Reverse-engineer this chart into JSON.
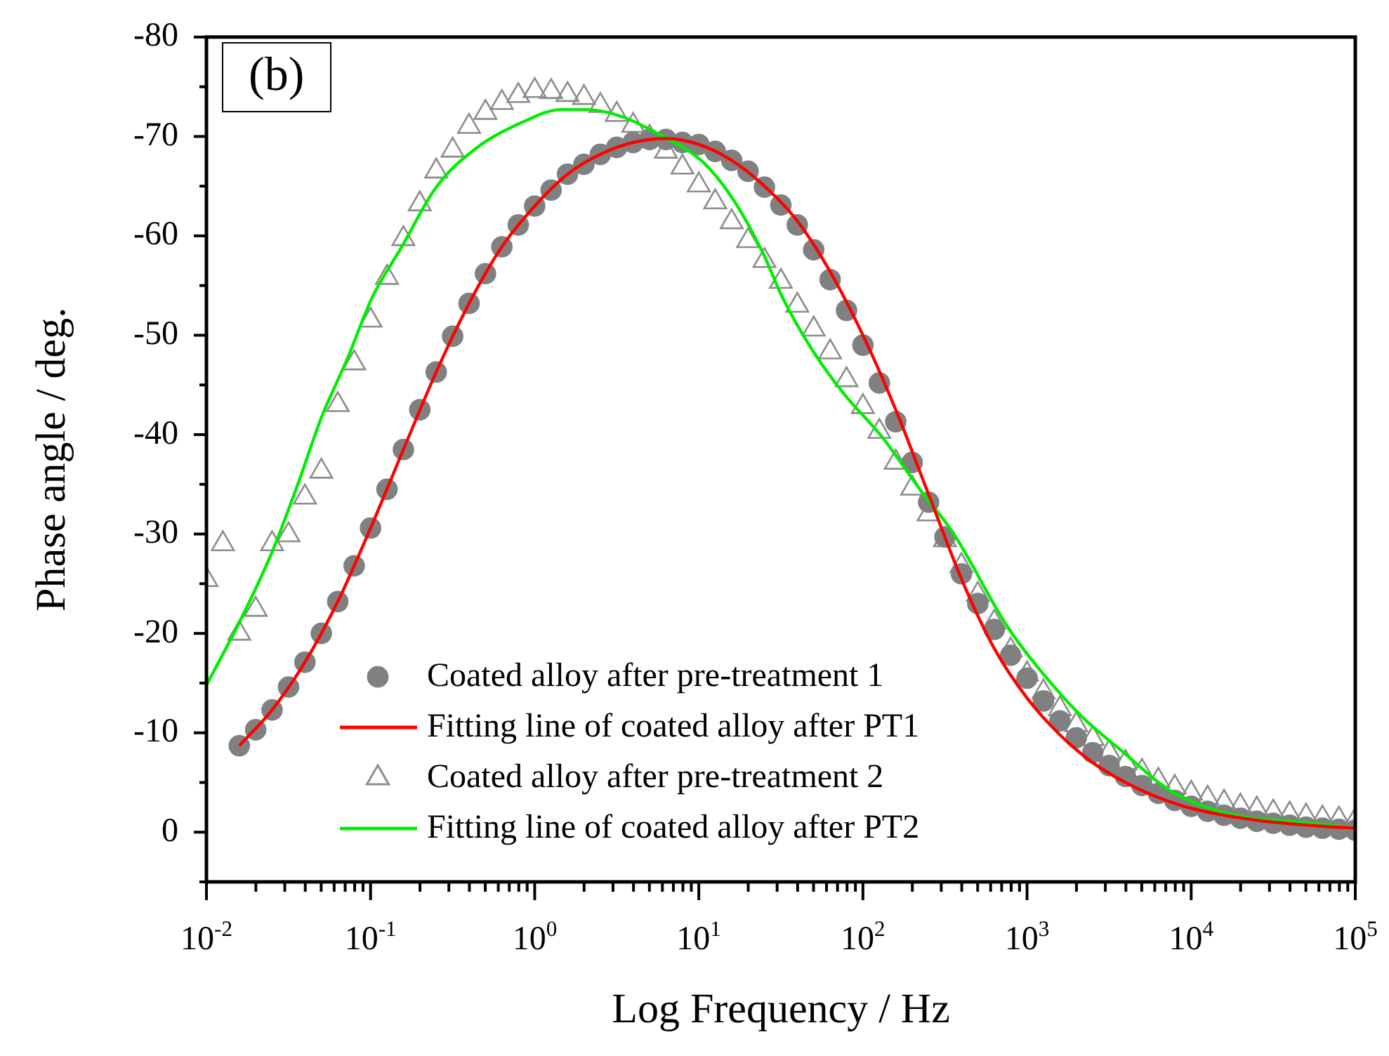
{
  "chart_data": {
    "type": "scatter",
    "xlabel": "Log Frequency / Hz",
    "ylabel": "Phase angle / deg.",
    "log": "x",
    "legend": "bottom left",
    "grid": false,
    "annotations": [
      "(b)"
    ],
    "xlim": [
      0.01,
      100000
    ],
    "ylim": [
      5,
      -80
    ],
    "yticks": [
      -80,
      {
        "value": -75,
        "label": null
      },
      -70,
      {
        "value": -65,
        "label": null
      },
      -60,
      {
        "value": -55,
        "label": null
      },
      -50,
      {
        "value": -45,
        "label": null
      },
      -40,
      {
        "value": -35,
        "label": null
      },
      -30,
      {
        "value": -25,
        "label": null
      },
      -20,
      {
        "value": -15,
        "label": null
      },
      -10,
      {
        "value": -5,
        "label": null
      },
      0,
      {
        "value": 5,
        "label": null
      }
    ],
    "xticks": [
      {
        "value": 0.01,
        "label": "10$^{-2}$"
      },
      {
        "value": 0.02,
        "label": null
      },
      {
        "value": 0.03,
        "label": null
      },
      {
        "value": 0.04,
        "label": null
      },
      {
        "value": 0.05,
        "label": null
      },
      {
        "value": 0.06,
        "label": null
      },
      {
        "value": 0.07,
        "label": null
      },
      {
        "value": 0.08,
        "label": null
      },
      {
        "value": 0.09,
        "label": null
      },
      {
        "value": 0.1,
        "label": "10$^{-1}$"
      },
      {
        "value": 0.2,
        "label": null
      },
      {
        "value": 0.3,
        "label": null
      },
      {
        "value": 0.4,
        "label": null
      },
      {
        "value": 0.5,
        "label": null
      },
      {
        "value": 0.6,
        "label": null
      },
      {
        "value": 0.7,
        "label": null
      },
      {
        "value": 0.8,
        "label": null
      },
      {
        "value": 0.9,
        "label": null
      },
      {
        "value": 1,
        "label": "10$^{0}$"
      },
      {
        "value": 2,
        "label": null
      },
      {
        "value": 3,
        "label": null
      },
      {
        "value": 4,
        "label": null
      },
      {
        "value": 5,
        "label": null
      },
      {
        "value": 6,
        "label": null
      },
      {
        "value": 7,
        "label": null
      },
      {
        "value": 8,
        "label": null
      },
      {
        "value": 9,
        "label": null
      },
      {
        "value": 10,
        "label": "10$^{1}$"
      },
      {
        "value": 20,
        "label": null
      },
      {
        "value": 30,
        "label": null
      },
      {
        "value": 40,
        "label": null
      },
      {
        "value": 50,
        "label": null
      },
      {
        "value": 60,
        "label": null
      },
      {
        "value": 70,
        "label": null
      },
      {
        "value": 80,
        "label": null
      },
      {
        "value": 90,
        "label": null
      },
      {
        "value": 100,
        "label": "10$^{2}$"
      },
      {
        "value": 200,
        "label": null
      },
      {
        "value": 300,
        "label": null
      },
      {
        "value": 400,
        "label": null
      },
      {
        "value": 500,
        "label": null
      },
      {
        "value": 600,
        "label": null
      },
      {
        "value": 700,
        "label": null
      },
      {
        "value": 800,
        "label": null
      },
      {
        "value": 900,
        "label": null
      },
      {
        "value": 1000,
        "label": "10$^{3}$"
      },
      {
        "value": 2000,
        "label": null
      },
      {
        "value": 3000,
        "label": null
      },
      {
        "value": 4000,
        "label": null
      },
      {
        "value": 5000,
        "label": null
      },
      {
        "value": 6000,
        "label": null
      },
      {
        "value": 7000,
        "label": null
      },
      {
        "value": 8000,
        "label": null
      },
      {
        "value": 9000,
        "label": null
      },
      {
        "value": 10000,
        "label": "10$^{4}$"
      },
      {
        "value": 20000,
        "label": null
      },
      {
        "value": 30000,
        "label": null
      },
      {
        "value": 40000,
        "label": null
      },
      {
        "value": 50000,
        "label": null
      },
      {
        "value": 60000,
        "label": null
      },
      {
        "value": 70000,
        "label": null
      },
      {
        "value": 80000,
        "label": null
      },
      {
        "value": 90000,
        "label": null
      },
      {
        "value": 100000,
        "label": "10$^{5}$"
      }
    ],
    "series": [
      {
        "name": "Coated alloy after pre-treatment 1",
        "type": "scatter",
        "marker": "circle",
        "color": "#808080",
        "x": [
          0.01585,
          0.01995,
          0.02512,
          0.03162,
          0.03981,
          0.05012,
          0.0631,
          0.07943,
          0.1,
          0.1259,
          0.1585,
          0.1995,
          0.2512,
          0.3162,
          0.3981,
          0.5012,
          0.631,
          0.7943,
          1,
          1.259,
          1.585,
          1.995,
          2.512,
          3.162,
          3.981,
          5.012,
          6.31,
          7.943,
          10,
          12.59,
          15.85,
          19.95,
          25.12,
          31.62,
          39.81,
          50.12,
          63.1,
          79.43,
          100,
          125.9,
          158.5,
          199.5,
          251.2,
          316.2,
          398.1,
          501.2,
          631,
          794.3,
          1000,
          1259,
          1585,
          1995,
          2512,
          3162,
          3981,
          5012,
          6310,
          7943,
          10000,
          12590,
          15850,
          19950,
          25120,
          31620,
          39810,
          50120,
          63100,
          79430,
          100000
        ],
        "values": [
          -8.7,
          -10.3,
          -12.3,
          -14.6,
          -17.1,
          -20.0,
          -23.2,
          -26.8,
          -30.6,
          -34.5,
          -38.5,
          -42.5,
          -46.3,
          -49.9,
          -53.2,
          -56.2,
          -58.9,
          -61.1,
          -63.0,
          -64.6,
          -66.2,
          -67.2,
          -68.2,
          -68.9,
          -69.4,
          -69.7,
          -69.7,
          -69.4,
          -69.2,
          -68.5,
          -67.6,
          -66.5,
          -64.9,
          -63.1,
          -61.1,
          -58.6,
          -55.6,
          -52.5,
          -49.0,
          -45.2,
          -41.3,
          -37.2,
          -33.2,
          -29.7,
          -26.0,
          -23.0,
          -20.4,
          -17.8,
          -15.5,
          -13.2,
          -11.2,
          -9.5,
          -8.0,
          -6.7,
          -5.6,
          -4.7,
          -3.9,
          -3.2,
          -2.6,
          -2.1,
          -1.7,
          -1.4,
          -1.1,
          -0.9,
          -0.7,
          -0.5,
          -0.4,
          -0.3,
          -0.2
        ]
      },
      {
        "name": "Fitting line of coated alloy after PT1",
        "type": "line",
        "marker": "none",
        "line_style": "solid",
        "color": "#ff0000",
        "x": [
          0.01585,
          0.02512,
          0.03981,
          0.0631,
          0.1,
          0.1585,
          0.2512,
          0.3981,
          0.631,
          1,
          1.585,
          2.512,
          3.981,
          6.31,
          10,
          15.85,
          25.12,
          39.81,
          63.1,
          100,
          158.5,
          251.2,
          398.1,
          631,
          1000,
          1585,
          2512,
          3981,
          6310,
          10000,
          25120,
          63100,
          100000
        ],
        "values": [
          -8.7,
          -12.3,
          -17.1,
          -23.2,
          -30.6,
          -38.5,
          -46.3,
          -53.2,
          -58.9,
          -63.0,
          -66.2,
          -68.2,
          -69.4,
          -69.8,
          -69.2,
          -67.6,
          -65.0,
          -61.5,
          -56.4,
          -50.0,
          -42.5,
          -34.0,
          -25.5,
          -18.5,
          -13.5,
          -9.8,
          -7.0,
          -5.0,
          -3.5,
          -2.4,
          -1.2,
          -0.6,
          -0.4
        ]
      },
      {
        "name": "Coated alloy after pre-treatment 2",
        "type": "scatter",
        "marker": "triangle",
        "color": "#8c8c8c",
        "x": [
          0.01,
          0.01259,
          0.01585,
          0.01995,
          0.02512,
          0.03162,
          0.03981,
          0.05012,
          0.0631,
          0.07943,
          0.1,
          0.1259,
          0.1585,
          0.1995,
          0.2512,
          0.3162,
          0.3981,
          0.5012,
          0.631,
          0.7943,
          1,
          1.259,
          1.585,
          1.995,
          2.512,
          3.162,
          3.981,
          5.012,
          6.31,
          7.943,
          10,
          12.59,
          15.85,
          19.95,
          25.12,
          31.62,
          39.81,
          50.12,
          63.1,
          79.43,
          100,
          125.9,
          158.5,
          199.5,
          251.2,
          316.2,
          398.1,
          501.2,
          631,
          794.3,
          1000,
          1259,
          1585,
          1995,
          2512,
          3162,
          3981,
          5012,
          6310,
          7943,
          10000,
          12590,
          15850,
          19950,
          25120,
          31620,
          39810,
          50120,
          63100,
          79430,
          100000
        ],
        "values": [
          -25.4,
          -29.0,
          -20.0,
          -22.4,
          -29.0,
          -29.9,
          -33.7,
          -36.3,
          -43.0,
          -47.2,
          -51.5,
          -55.8,
          -59.7,
          -63.2,
          -66.5,
          -68.6,
          -71.0,
          -72.4,
          -73.4,
          -74.1,
          -74.6,
          -74.5,
          -74.2,
          -73.9,
          -73.1,
          -72.2,
          -71.1,
          -69.9,
          -68.5,
          -66.9,
          -65.1,
          -63.4,
          -61.4,
          -59.5,
          -57.5,
          -55.4,
          -53.0,
          -50.6,
          -48.3,
          -45.5,
          -42.8,
          -40.3,
          -37.2,
          -34.6,
          -32.0,
          -29.4,
          -26.8,
          -23.9,
          -21.1,
          -18.3,
          -15.9,
          -14.1,
          -12.4,
          -10.8,
          -9.4,
          -8.0,
          -7.0,
          -6.1,
          -5.2,
          -4.5,
          -3.9,
          -3.4,
          -3.0,
          -2.6,
          -2.3,
          -2.0,
          -1.8,
          -1.6,
          -1.4,
          -1.3,
          -1.2
        ]
      },
      {
        "name": "Fitting line of coated alloy after PT2",
        "type": "line",
        "marker": "none",
        "line_style": "solid",
        "color": "#00ee00",
        "x": [
          0.01,
          0.01585,
          0.02512,
          0.03548,
          0.05012,
          0.07244,
          0.1023,
          0.1549,
          0.2512,
          0.4467,
          0.8318,
          1.445,
          2.089,
          3.388,
          5.888,
          10.47,
          15.85,
          24.55,
          32.36,
          50.12,
          75.86,
          131.8,
          229.1,
          354.8,
          758.6,
          1175,
          2138,
          3890,
          7413,
          17378,
          46774,
          100000
        ],
        "values": [
          -14.8,
          -21.1,
          -28.2,
          -34.7,
          -41.7,
          -47.7,
          -53.8,
          -58.9,
          -64.9,
          -68.9,
          -71.4,
          -72.7,
          -72.7,
          -72.0,
          -70.1,
          -67.5,
          -63.9,
          -58.3,
          -53.8,
          -48.3,
          -44.2,
          -39.7,
          -34.2,
          -30.1,
          -20.7,
          -16.5,
          -11.7,
          -8.0,
          -4.2,
          -1.8,
          -1.0,
          -0.4
        ]
      }
    ]
  }
}
